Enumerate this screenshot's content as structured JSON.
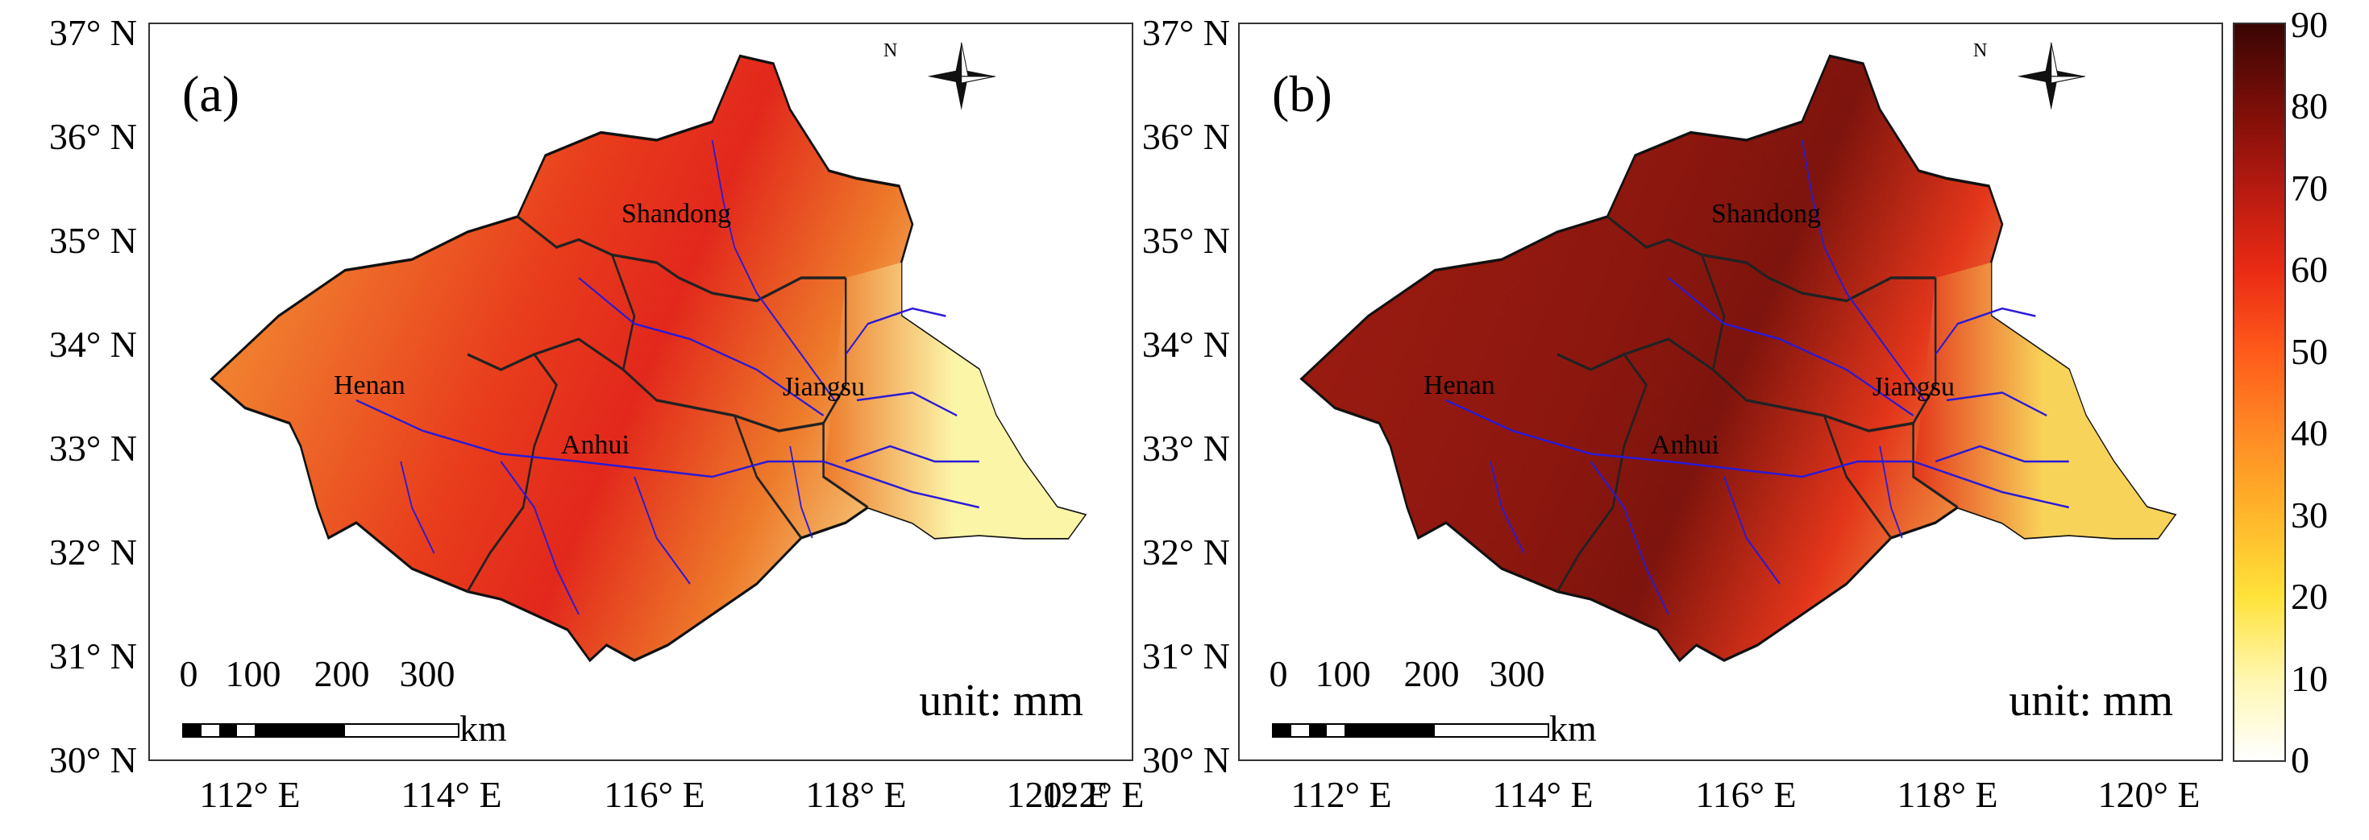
{
  "figure": {
    "unit_text": "unit: mm",
    "scale_bar": {
      "numbers": [
        "0",
        "100",
        "200",
        "300"
      ],
      "unit": "km"
    },
    "compass_letter": "N",
    "lat_ticks": [
      "37° N",
      "36° N",
      "35° N",
      "34° N",
      "33° N",
      "32° N",
      "31° N",
      "30° N"
    ],
    "lon_ticks": [
      "112° E",
      "114° E",
      "116° E",
      "118° E",
      "120° E",
      "122° E"
    ],
    "provinces": [
      "Shandong",
      "Henan",
      "Anhui",
      "Jiangsu"
    ],
    "river_color": "#2a1ad6"
  },
  "panels": [
    {
      "label": "(a)",
      "fill_colors": {
        "west": "#f5a53a",
        "center": "#e83c1c",
        "north": "#e2281c",
        "east": "#fbf5a8",
        "south": "#ed7a2a"
      }
    },
    {
      "label": "(b)",
      "fill_colors": {
        "west": "#a01d12",
        "center": "#8b170f",
        "north": "#7d140d",
        "east": "#f8d35a",
        "south": "#e3361b"
      }
    }
  ],
  "colorbar": {
    "min": 0,
    "max": 90,
    "ticks": [
      "90",
      "80",
      "70",
      "60",
      "50",
      "40",
      "30",
      "20",
      "10",
      "0"
    ],
    "stops": [
      "#ffffff",
      "#fff7b0",
      "#ffe23a",
      "#ffb62a",
      "#ff8a24",
      "#ff5a1a",
      "#ea2a14",
      "#b51a10",
      "#7a0e08",
      "#3a0503"
    ]
  }
}
